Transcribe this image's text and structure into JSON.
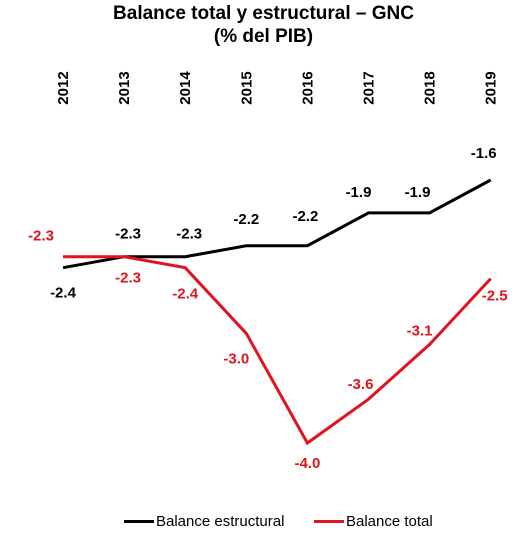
{
  "chart_data": {
    "type": "line",
    "title_line1": "Balance total y estructural – GNC",
    "title_line2": "(% del PIB)",
    "categories": [
      "2012",
      "2013",
      "2014",
      "2015",
      "2016",
      "2017",
      "2018",
      "2019"
    ],
    "series": [
      {
        "name": "Balance estructural",
        "color": "#000000",
        "values": [
          -2.4,
          -2.3,
          -2.3,
          -2.2,
          -2.2,
          -1.9,
          -1.9,
          -1.6
        ],
        "labels": [
          "-2.4",
          "-2.3",
          "-2.3",
          "-2.2",
          "-2.2",
          "-1.9",
          "-1.9",
          "-1.6"
        ],
        "label_color": "#000000"
      },
      {
        "name": "Balance total",
        "color": "#e0141e",
        "values": [
          -2.3,
          -2.3,
          -2.4,
          -3.0,
          -4.0,
          -3.6,
          -3.1,
          -2.5
        ],
        "labels": [
          "-2.3",
          "-2.3",
          "-2.4",
          "-3.0",
          "-4.0",
          "-3.6",
          "-3.1",
          "-2.5"
        ],
        "label_color": "#e0141e"
      }
    ],
    "ylim": [
      -4.0,
      -1.6
    ],
    "grid": false,
    "legend_position": "bottom",
    "x_axis_position": "top",
    "x_tick_rotation": "vertical"
  }
}
